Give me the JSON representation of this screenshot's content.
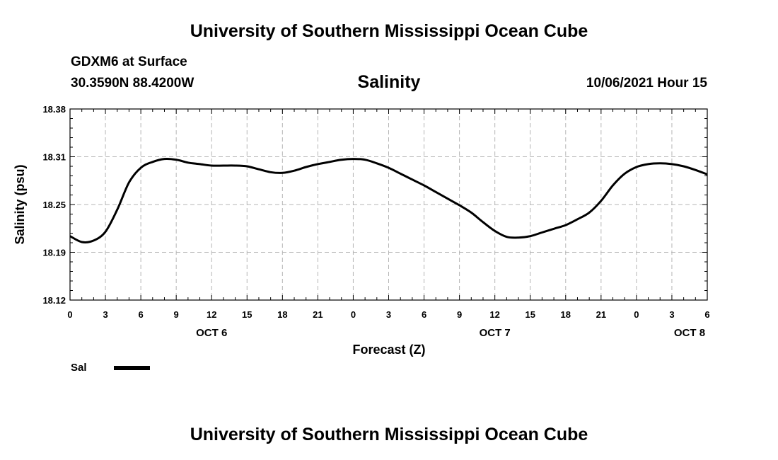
{
  "header": {
    "top_title": "University of Southern Mississippi Ocean Cube",
    "station": "GDXM6 at Surface",
    "coords": "30.3590N  88.4200W",
    "variable": "Salinity",
    "datetime": "10/06/2021 Hour 15",
    "bottom_title": "University of Southern Mississippi Ocean Cube"
  },
  "legend": {
    "label": "Sal",
    "color": "#000000"
  },
  "chart_data": {
    "type": "line",
    "title": "Salinity",
    "xlabel": "Forecast (Z)",
    "ylabel": "Salinity (psu)",
    "ylim": [
      18.12,
      18.38
    ],
    "xlim": [
      0,
      54
    ],
    "grid": true,
    "y_ticks": [
      "18.12",
      "18.19",
      "18.25",
      "18.31",
      "18.38"
    ],
    "x_ticks": [
      "0",
      "3",
      "6",
      "9",
      "12",
      "15",
      "18",
      "21",
      "0",
      "3",
      "6",
      "9",
      "12",
      "15",
      "18",
      "21",
      "0",
      "3",
      "6"
    ],
    "day_labels": [
      {
        "label": "OCT 6",
        "hour": 12
      },
      {
        "label": "OCT 7",
        "hour": 36
      },
      {
        "label": "OCT 8",
        "hour": 52.5
      }
    ],
    "series": [
      {
        "name": "Sal",
        "x": [
          0,
          1,
          2,
          3,
          4,
          5,
          6,
          7,
          8,
          9,
          10,
          11,
          12,
          13,
          14,
          15,
          16,
          17,
          18,
          19,
          20,
          21,
          22,
          23,
          24,
          25,
          26,
          27,
          28,
          29,
          30,
          31,
          32,
          33,
          34,
          35,
          36,
          37,
          38,
          39,
          40,
          41,
          42,
          43,
          44,
          45,
          46,
          47,
          48,
          49,
          50,
          51,
          52,
          53,
          54
        ],
        "values": [
          18.207,
          18.199,
          18.201,
          18.213,
          18.243,
          18.28,
          18.3,
          18.308,
          18.312,
          18.311,
          18.307,
          18.305,
          18.303,
          18.303,
          18.303,
          18.302,
          18.298,
          18.294,
          18.293,
          18.296,
          18.301,
          18.305,
          18.308,
          18.311,
          18.312,
          18.311,
          18.306,
          18.3,
          18.292,
          18.284,
          18.276,
          18.267,
          18.258,
          18.249,
          18.239,
          18.226,
          18.214,
          18.206,
          18.205,
          18.207,
          18.212,
          18.217,
          18.222,
          18.23,
          18.239,
          18.255,
          18.276,
          18.292,
          18.301,
          18.305,
          18.306,
          18.305,
          18.302,
          18.297,
          18.291
        ]
      }
    ]
  }
}
